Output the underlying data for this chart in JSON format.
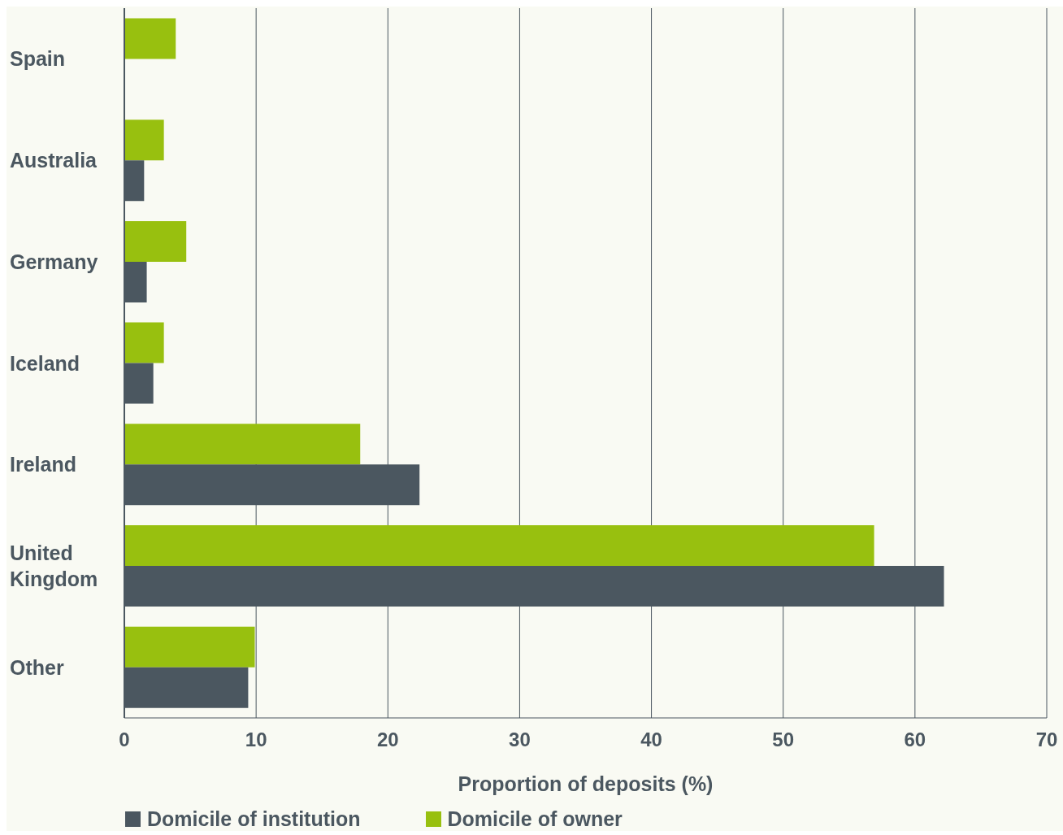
{
  "chart_data": {
    "type": "bar",
    "orientation": "horizontal",
    "xlabel": "Proportion of deposits (%)",
    "categories": [
      "Spain",
      "Australia",
      "Germany",
      "Iceland",
      "Ireland",
      "United Kingdom",
      "Other"
    ],
    "series": [
      {
        "name": "Domicile of institution",
        "color": "#4b5760",
        "values": [
          null,
          1.5,
          1.7,
          2.2,
          22.4,
          62.2,
          9.4
        ]
      },
      {
        "name": "Domicile of owner",
        "color": "#98c00f",
        "values": [
          3.9,
          3.0,
          4.7,
          3.0,
          17.9,
          56.9,
          9.9
        ]
      }
    ],
    "xlim": [
      0,
      70
    ],
    "xticks": [
      0,
      10,
      20,
      30,
      40,
      50,
      60,
      70
    ],
    "grid": "x",
    "legend": "bottom"
  }
}
